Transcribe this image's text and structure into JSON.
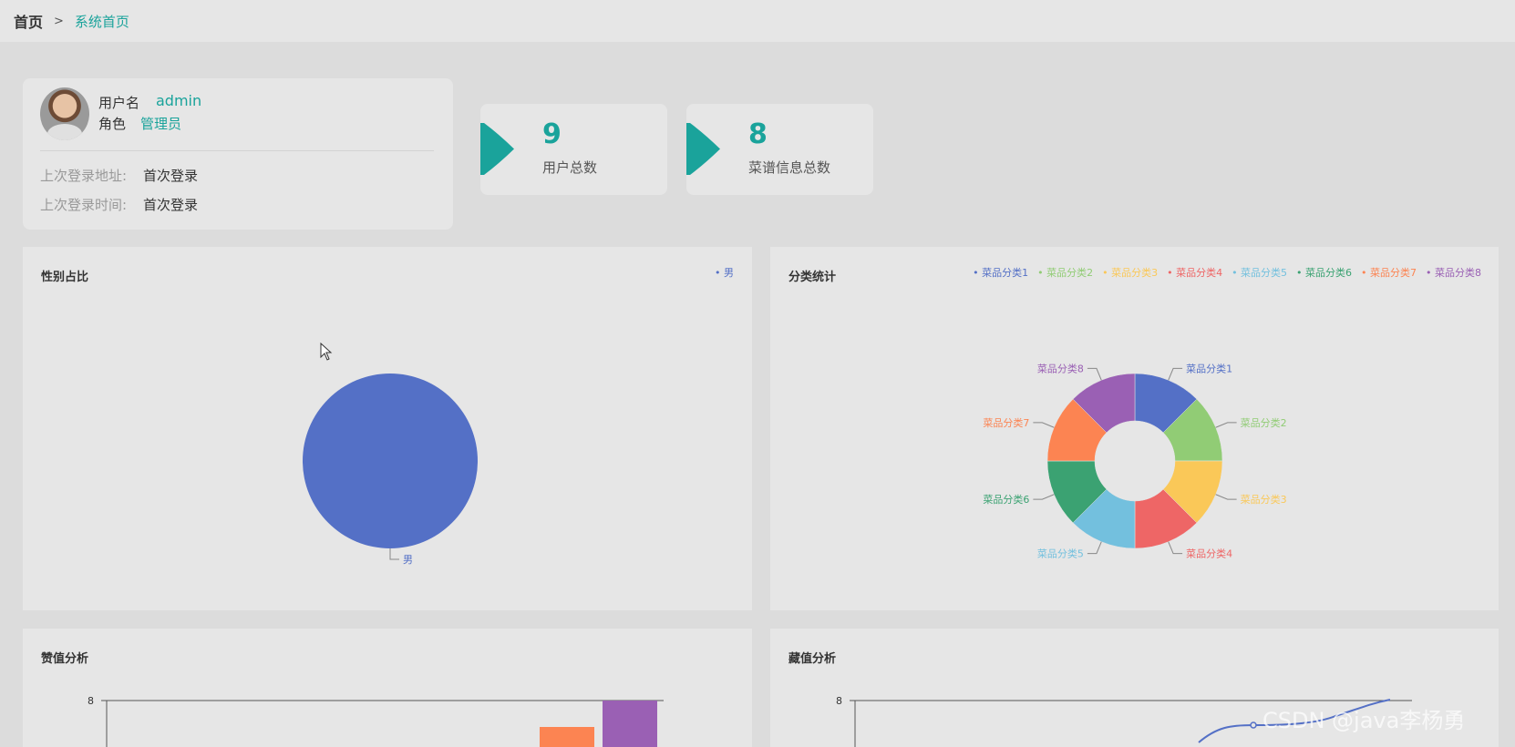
{
  "breadcrumb": {
    "home": "首页",
    "separator": ">",
    "current": "系统首页"
  },
  "user_info": {
    "username_label": "用户名",
    "username": "admin",
    "role_label": "角色",
    "role": "管理员",
    "last_login_addr_label": "上次登录地址:",
    "last_login_addr": "首次登录",
    "last_login_time_label": "上次登录时间:",
    "last_login_time": "首次登录"
  },
  "stats": [
    {
      "value": "9",
      "label": "用户总数"
    },
    {
      "value": "8",
      "label": "菜谱信息总数"
    }
  ],
  "colors": {
    "accent": "#1aa39b",
    "series": [
      "#5470c6",
      "#91cc75",
      "#fac858",
      "#ee6666",
      "#73c0de",
      "#3ba272",
      "#fc8452",
      "#9a60b4"
    ]
  },
  "panels": {
    "gender": {
      "title": "性别占比"
    },
    "category": {
      "title": "分类统计"
    },
    "likes": {
      "title": "赞值分析"
    },
    "collect": {
      "title": "藏值分析"
    }
  },
  "chart_data": [
    {
      "type": "pie",
      "title": "性别占比",
      "categories": [
        "男"
      ],
      "values": [
        1
      ],
      "legend": "top-right"
    },
    {
      "type": "pie",
      "title": "分类统计",
      "donut": true,
      "categories": [
        "菜品分类1",
        "菜品分类2",
        "菜品分类3",
        "菜品分类4",
        "菜品分类5",
        "菜品分类6",
        "菜品分类7",
        "菜品分类8"
      ],
      "values": [
        1,
        1,
        1,
        1,
        1,
        1,
        1,
        1
      ],
      "legend": "top-right"
    },
    {
      "type": "bar",
      "title": "赞值分析",
      "yticks": [
        "8"
      ],
      "ylim": [
        0,
        8
      ]
    },
    {
      "type": "line",
      "title": "藏值分析",
      "yticks": [
        "8"
      ],
      "ylim": [
        0,
        8
      ]
    }
  ],
  "watermark": "CSDN @java李杨勇"
}
